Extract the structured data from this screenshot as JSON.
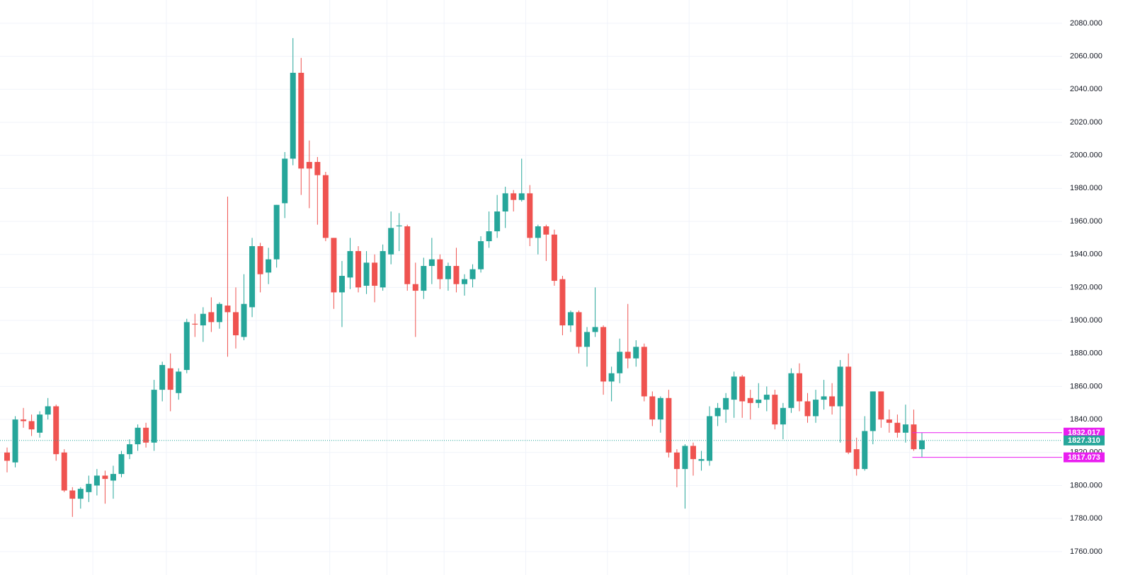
{
  "chart_data": {
    "type": "candlestick",
    "up_color": "#26a69a",
    "down_color": "#ef5350",
    "grid": true,
    "ylim": [
      1745.8,
      2094.1
    ],
    "yticks": [
      {
        "value": 1760,
        "label": "1760.000"
      },
      {
        "value": 1780,
        "label": "1780.000"
      },
      {
        "value": 1800,
        "label": "1800.000"
      },
      {
        "value": 1820,
        "label": "1820.000"
      },
      {
        "value": 1840,
        "label": "1840.000"
      },
      {
        "value": 1860,
        "label": "1860.000"
      },
      {
        "value": 1880,
        "label": "1880.000"
      },
      {
        "value": 1900,
        "label": "1900.000"
      },
      {
        "value": 1920,
        "label": "1920.000"
      },
      {
        "value": 1940,
        "label": "1940.000"
      },
      {
        "value": 1960,
        "label": "1960.000"
      },
      {
        "value": 1980,
        "label": "1980.000"
      },
      {
        "value": 2000,
        "label": "2000.000"
      },
      {
        "value": 2020,
        "label": "2020.000"
      },
      {
        "value": 2040,
        "label": "2040.000"
      },
      {
        "value": 2060,
        "label": "2060.000"
      },
      {
        "value": 2080,
        "label": "2080.000"
      }
    ],
    "open": [
      1820,
      1814,
      1840,
      1839,
      1832,
      1843,
      1848,
      1820,
      1797,
      1792,
      1796,
      1800,
      1806,
      1803,
      1807,
      1819,
      1825,
      1835,
      1826,
      1858,
      1871,
      1856,
      1870,
      1898,
      1897,
      1905,
      1899,
      1909,
      1905,
      1890,
      1908,
      1945,
      1929,
      1937,
      1971,
      1998,
      2050,
      1996,
      1996,
      1988,
      1950,
      1917,
      1926,
      1942,
      1921,
      1935,
      1920,
      1940,
      1957,
      1957,
      1922,
      1918,
      1933,
      1937,
      1925,
      1933,
      1922,
      1925,
      1931,
      1948,
      1954,
      1966,
      1977,
      1973,
      1977,
      1950,
      1957,
      1952,
      1925,
      1897,
      1905,
      1884,
      1893,
      1896,
      1863,
      1868,
      1881,
      1877,
      1884,
      1854,
      1840,
      1853,
      1820,
      1810,
      1824,
      1815,
      1815,
      1842,
      1846,
      1852,
      1866,
      1853,
      1850,
      1852,
      1855,
      1837,
      1847,
      1868,
      1851,
      1842,
      1852,
      1854,
      1848,
      1872,
      1822,
      1810,
      1833,
      1857,
      1840,
      1838,
      1832,
      1837,
      1822
    ],
    "high": [
      1823,
      1842,
      1847,
      1843,
      1845,
      1853,
      1849,
      1822,
      1799,
      1799,
      1806,
      1810,
      1809,
      1812,
      1821,
      1828,
      1837,
      1838,
      1864,
      1875,
      1880,
      1871,
      1901,
      1904,
      1908,
      1914,
      1911,
      1975,
      1920,
      1928,
      1950,
      1947,
      1944,
      1970,
      2002,
      2071,
      2059,
      2009,
      1999,
      1990,
      1950,
      1936,
      1950,
      1945,
      1942,
      1940,
      1946,
      1966,
      1965,
      1958,
      1935,
      1938,
      1950,
      1940,
      1935,
      1944,
      1928,
      1934,
      1951,
      1966,
      1976,
      1981,
      1979,
      1998,
      1982,
      1958,
      1958,
      1955,
      1927,
      1906,
      1906,
      1896,
      1920,
      1897,
      1872,
      1889,
      1910,
      1888,
      1886,
      1857,
      1854,
      1858,
      1822,
      1825,
      1826,
      1821,
      1848,
      1850,
      1856,
      1869,
      1867,
      1858,
      1862,
      1860,
      1858,
      1850,
      1871,
      1874,
      1856,
      1858,
      1864,
      1862,
      1876,
      1880,
      1829,
      1842,
      1857,
      1857,
      1846,
      1843,
      1849,
      1846,
      1832.017
    ],
    "low": [
      1808,
      1811,
      1835,
      1830,
      1829,
      1840,
      1815,
      1796,
      1781,
      1786,
      1790,
      1794,
      1789,
      1792,
      1805,
      1816,
      1821,
      1823,
      1821,
      1851,
      1845,
      1852,
      1868,
      1890,
      1887,
      1893,
      1895,
      1878,
      1883,
      1888,
      1902,
      1917,
      1922,
      1932,
      1962,
      1994,
      1976,
      1968,
      1958,
      1948,
      1907,
      1896,
      1919,
      1917,
      1916,
      1911,
      1918,
      1934,
      1942,
      1918,
      1890,
      1913,
      1922,
      1919,
      1918,
      1917,
      1915,
      1920,
      1929,
      1944,
      1950,
      1956,
      1966,
      1972,
      1945,
      1940,
      1936,
      1921,
      1891,
      1893,
      1880,
      1872,
      1890,
      1855,
      1851,
      1862,
      1871,
      1872,
      1851,
      1836,
      1832,
      1817,
      1799,
      1786,
      1806,
      1809,
      1812,
      1836,
      1838,
      1841,
      1841,
      1840,
      1847,
      1845,
      1834,
      1828,
      1844,
      1845,
      1838,
      1838,
      1846,
      1843,
      1826,
      1819,
      1806,
      1809,
      1825,
      1835,
      1832,
      1829,
      1826,
      1821,
      1817.073
    ],
    "close": [
      1815,
      1840,
      1839,
      1834,
      1843,
      1848,
      1819,
      1797,
      1792,
      1798,
      1801,
      1806,
      1804,
      1807,
      1819,
      1825,
      1835,
      1826,
      1858,
      1873,
      1858,
      1869,
      1899,
      1897.5,
      1904,
      1899,
      1910,
      1905,
      1891,
      1910,
      1945,
      1928,
      1937,
      1970,
      1998,
      2050,
      1992,
      1992,
      1988,
      1950,
      1917,
      1927,
      1942,
      1920,
      1935,
      1921,
      1942,
      1956,
      1957.5,
      1922,
      1918,
      1933,
      1937,
      1925,
      1933,
      1922,
      1925,
      1931,
      1948,
      1954,
      1966,
      1977,
      1973,
      1977,
      1950,
      1957,
      1952,
      1924,
      1897,
      1905,
      1884,
      1893,
      1896,
      1863,
      1868,
      1881,
      1877,
      1884,
      1854,
      1840,
      1853,
      1820,
      1810,
      1824,
      1816,
      1816,
      1842,
      1847,
      1853,
      1866,
      1851,
      1850,
      1852,
      1855,
      1837,
      1847,
      1868,
      1851,
      1842,
      1852,
      1854,
      1848,
      1872,
      1820,
      1810,
      1833,
      1857,
      1840,
      1838,
      1832,
      1837,
      1822,
      1827.31
    ],
    "price_labels": [
      {
        "value": 1832.017,
        "label": "1832.017",
        "color": "#e91ef0"
      },
      {
        "value": 1827.31,
        "label": "1827.310",
        "color": "#26a69a"
      },
      {
        "value": 1817.073,
        "label": "1817.073",
        "color": "#e91ef0"
      }
    ]
  }
}
